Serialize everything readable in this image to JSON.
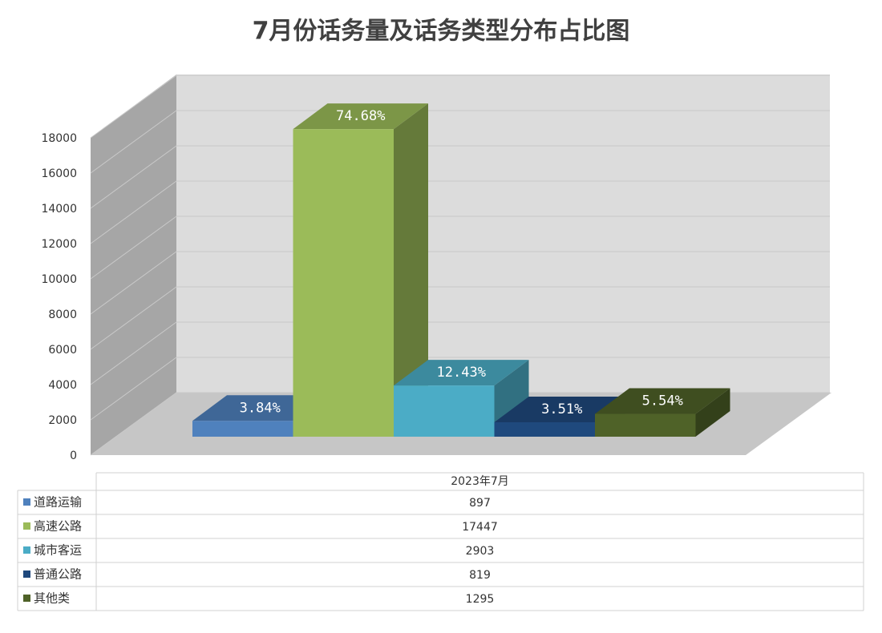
{
  "chart_data": {
    "type": "bar3d",
    "title": "7月份话务量及话务类型分布占比图",
    "categories": [
      "2023年7月"
    ],
    "series": [
      {
        "name": "道路运输",
        "color": "#4f81bd",
        "values": [
          897
        ],
        "value_labels": [
          "3.84%"
        ]
      },
      {
        "name": "高速公路",
        "color": "#9bbb59",
        "values": [
          17447
        ],
        "value_labels": [
          "74.68%"
        ]
      },
      {
        "name": "城市客运",
        "color": "#4bacc6",
        "values": [
          2903
        ],
        "value_labels": [
          "12.43%"
        ]
      },
      {
        "name": "普通公路",
        "color": "#1f497d",
        "values": [
          819
        ],
        "value_labels": [
          "3.51%"
        ]
      },
      {
        "name": "其他类",
        "color": "#4f6228",
        "values": [
          1295
        ],
        "value_labels": [
          "5.54%"
        ]
      }
    ],
    "ylim": [
      0,
      18000
    ],
    "yticks": [
      0,
      2000,
      4000,
      6000,
      8000,
      10000,
      12000,
      14000,
      16000,
      18000
    ],
    "grid": true
  }
}
